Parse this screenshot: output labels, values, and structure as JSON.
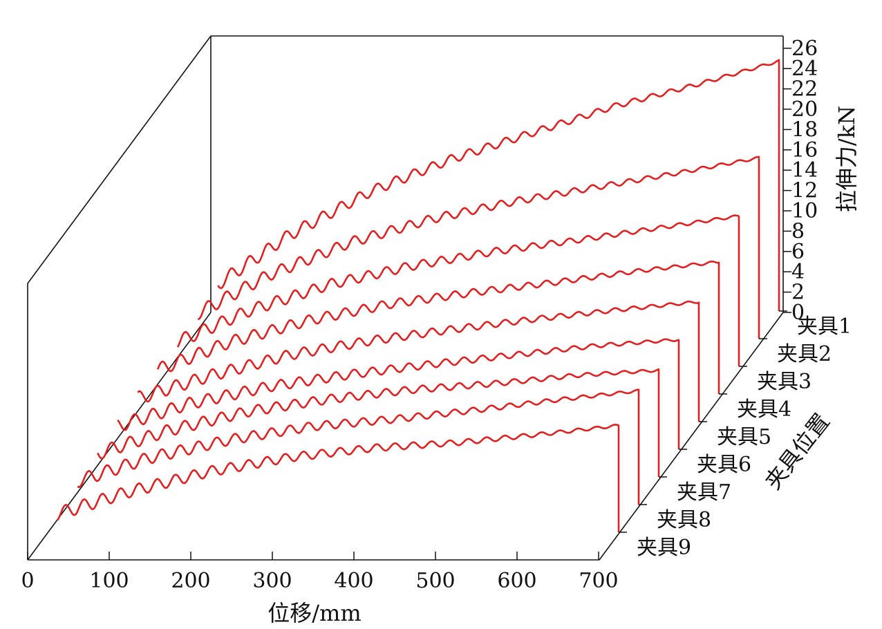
{
  "chart_data": {
    "type": "line",
    "projection": "3d-waterfall",
    "xlabel": "位移/mm",
    "zlabel": "拉伸力/kN",
    "ylabel": "夹具位置",
    "xlim": [
      0,
      700
    ],
    "zlim": [
      0,
      26
    ],
    "x_ticks": [
      "0",
      "100",
      "200",
      "300",
      "400",
      "500",
      "600",
      "700"
    ],
    "z_ticks": [
      "0",
      "2",
      "4",
      "6",
      "8",
      "10",
      "12",
      "14",
      "16",
      "18",
      "20",
      "22",
      "24",
      "26"
    ],
    "x": [
      0,
      100,
      200,
      300,
      400,
      500,
      600,
      700
    ],
    "series": [
      {
        "name": "夹具1",
        "values": [
          2.0,
          7.5,
          11.8,
          15.0,
          17.6,
          20.2,
          22.3,
          24.6
        ]
      },
      {
        "name": "夹具2",
        "values": [
          2.0,
          6.3,
          9.5,
          11.8,
          13.5,
          14.9,
          16.3,
          17.8
        ]
      },
      {
        "name": "夹具3",
        "values": [
          2.0,
          5.5,
          8.1,
          9.9,
          11.3,
          12.4,
          13.6,
          14.8
        ]
      },
      {
        "name": "夹具4",
        "values": [
          2.0,
          5.1,
          7.3,
          8.9,
          10.0,
          11.0,
          12.1,
          13.0
        ]
      },
      {
        "name": "夹具5",
        "values": [
          2.0,
          4.5,
          6.6,
          8.0,
          9.1,
          10.1,
          11.0,
          11.8
        ]
      },
      {
        "name": "夹具6",
        "values": [
          2.0,
          4.5,
          6.2,
          7.4,
          8.4,
          9.3,
          10.2,
          10.8
        ]
      },
      {
        "name": "夹具7",
        "values": [
          2.0,
          4.6,
          6.5,
          7.7,
          8.6,
          9.2,
          10.0,
          10.5
        ]
      },
      {
        "name": "夹具8",
        "values": [
          2.0,
          4.6,
          6.4,
          7.7,
          8.4,
          9.3,
          10.3,
          11.2
        ]
      },
      {
        "name": "夹具9",
        "values": [
          1.5,
          4.0,
          6.0,
          7.4,
          8.3,
          8.8,
          9.6,
          10.5
        ]
      }
    ],
    "line_color": "#e02020",
    "axis_color": "#111111",
    "grid": false,
    "legend": "series labels along depth axis"
  }
}
